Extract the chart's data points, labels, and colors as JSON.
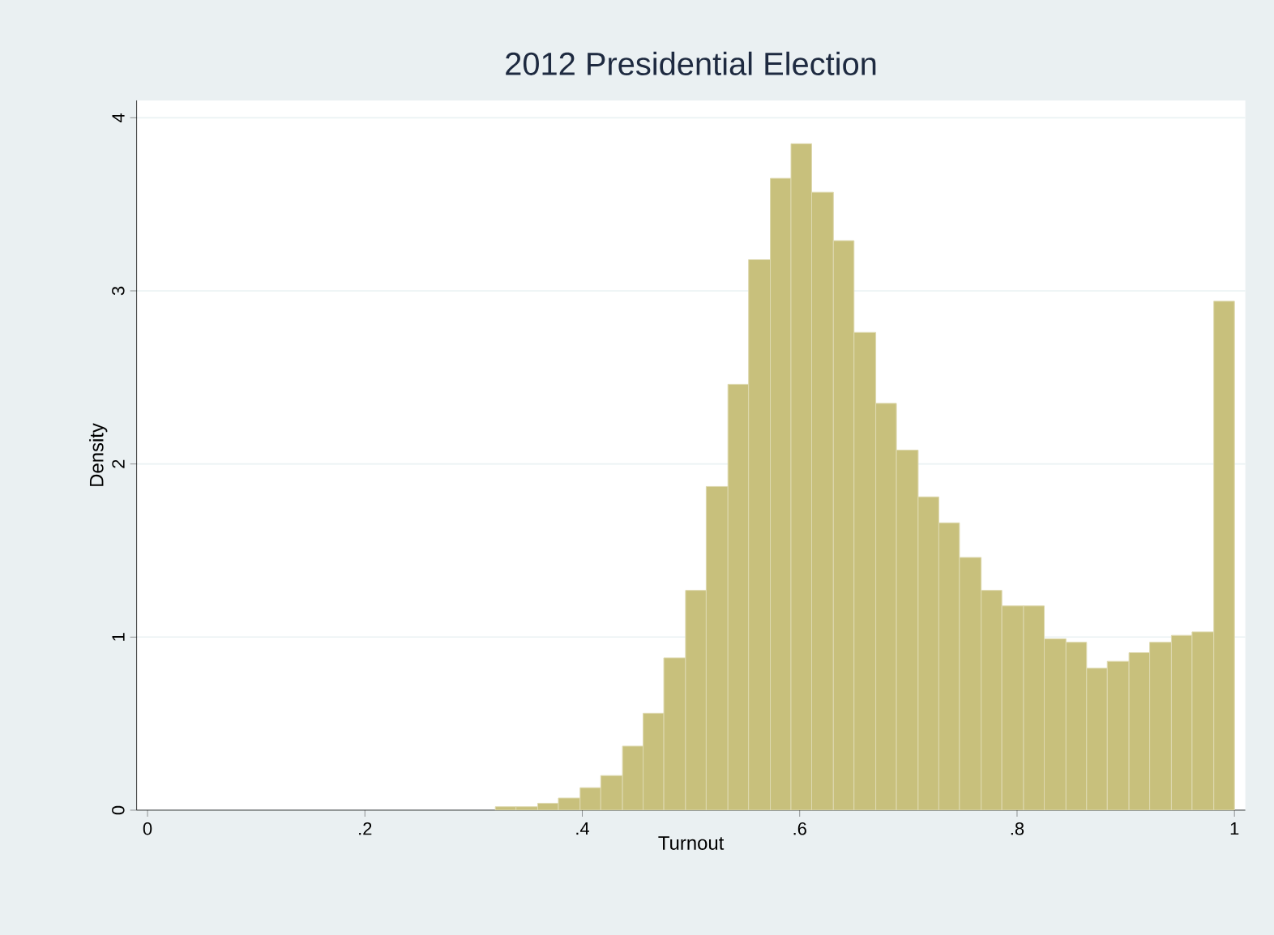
{
  "chart_data": {
    "type": "histogram",
    "title": "2012 Presidential Election",
    "xlabel": "Turnout",
    "ylabel": "Density",
    "bins": [
      0.32,
      0.339,
      0.359,
      0.378,
      0.398,
      0.417,
      0.437,
      0.456,
      0.475,
      0.495,
      0.514,
      0.534,
      0.553,
      0.573,
      0.592,
      0.611,
      0.631,
      0.65,
      0.67,
      0.689,
      0.709,
      0.728,
      0.747,
      0.767,
      0.786,
      0.806,
      0.825,
      0.845,
      0.864,
      0.883,
      0.903,
      0.922,
      0.942,
      0.961,
      0.981,
      1.0
    ],
    "values": [
      0.02,
      0.02,
      0.04,
      0.07,
      0.13,
      0.2,
      0.37,
      0.56,
      0.88,
      1.27,
      1.87,
      2.46,
      3.18,
      3.65,
      3.85,
      3.57,
      3.29,
      2.76,
      2.35,
      2.08,
      1.81,
      1.66,
      1.46,
      1.27,
      1.18,
      1.18,
      0.99,
      0.97,
      0.82,
      0.86,
      0.91,
      0.97,
      1.01,
      1.03,
      2.94
    ],
    "color": "#c8c07c",
    "xlim": [
      -0.01,
      1.01
    ],
    "ylim": [
      0,
      4.1
    ],
    "xticks": [
      0,
      {
        "value": 0.2,
        "label": ".2"
      },
      {
        "value": 0.4,
        "label": ".4"
      },
      {
        "value": 0.6,
        "label": ".6"
      },
      {
        "value": 0.8,
        "label": ".8"
      },
      1
    ],
    "yticks": [
      0,
      1,
      2,
      3,
      4
    ],
    "grid": "y"
  }
}
